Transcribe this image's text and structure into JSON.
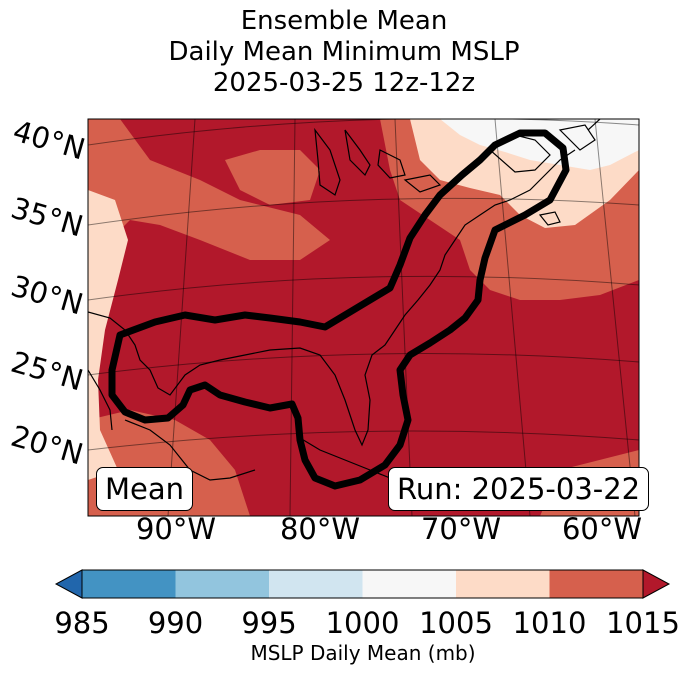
{
  "title": {
    "line1": "Ensemble Mean",
    "line2": "Daily Mean Minimum MSLP",
    "line3": "2025-03-25 12z-12z"
  },
  "map": {
    "lat_labels": [
      "40°N",
      "35°N",
      "30°N",
      "25°N",
      "20°N"
    ],
    "lon_labels": [
      "90°W",
      "80°W",
      "70°W",
      "60°W"
    ],
    "left_box": "Mean",
    "right_box": "Run: 2025-03-22",
    "contour": "1015 mb outline (black)"
  },
  "colorbar": {
    "ticks": [
      "985",
      "990",
      "995",
      "1000",
      "1005",
      "1010",
      "1015"
    ],
    "label": "MSLP Daily Mean (mb)",
    "colors": [
      "#2166ac",
      "#4393c3",
      "#92c5de",
      "#d1e5f0",
      "#f7f7f7",
      "#fddbc7",
      "#d6604d",
      "#b2182b"
    ],
    "extend": "both"
  },
  "field_colors": {
    "dark_red": "#b2182b",
    "mid_red": "#d6604d",
    "light_peach": "#fddbc7",
    "near_white": "#f7f7f7"
  }
}
